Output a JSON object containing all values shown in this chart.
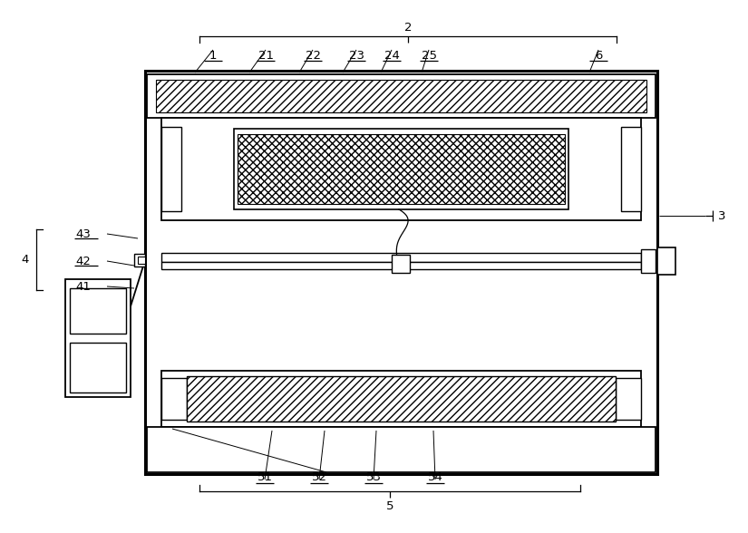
{
  "bg_color": "#ffffff",
  "line_color": "#000000",
  "figsize": [
    8.25,
    5.88
  ],
  "dpi": 100
}
